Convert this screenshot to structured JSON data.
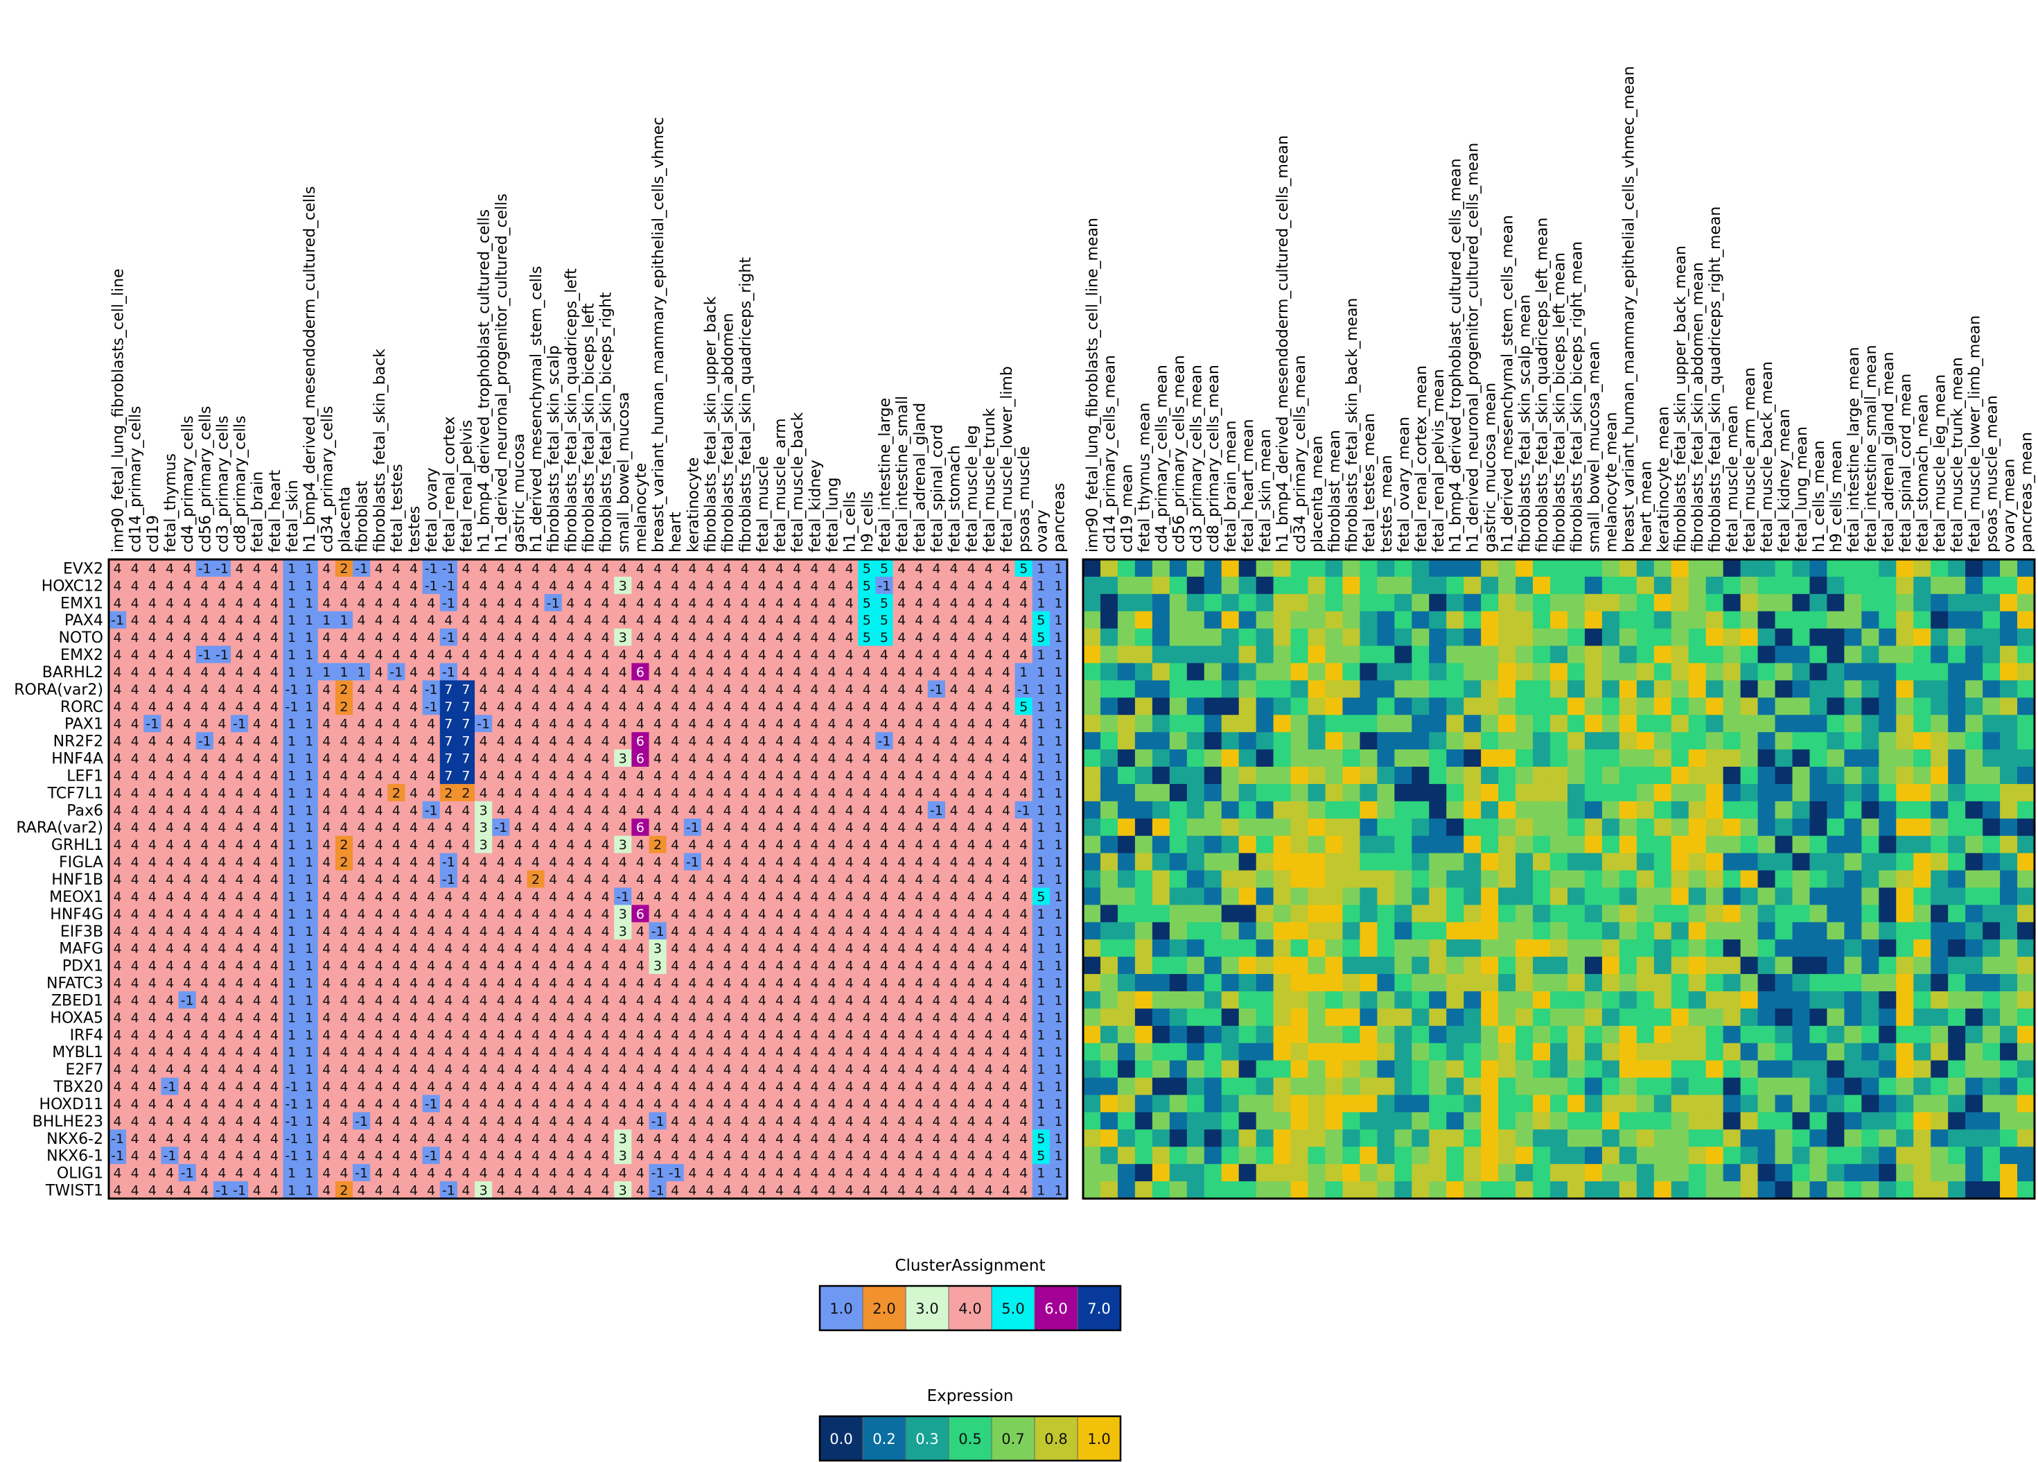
{
  "chart_data": [
    {
      "type": "heatmap",
      "name": "cluster-heatmap",
      "legend_title": "ClusterAssignment",
      "x": [
        "imr90_fetal_lung_fibroblasts_cell_line",
        "cd14_primary_cells",
        "cd19",
        "fetal_thymus",
        "cd4_primary_cells",
        "cd56_primary_cells",
        "cd3_primary_cells",
        "cd8_primary_cells",
        "fetal_brain",
        "fetal_heart",
        "fetal_skin",
        "h1_bmp4_derived_mesendoderm_cultured_cells",
        "cd34_primary_cells",
        "placenta",
        "fibroblast",
        "fibroblasts_fetal_skin_back",
        "fetal_testes",
        "testes",
        "fetal_ovary",
        "fetal_renal_cortex",
        "fetal_renal_pelvis",
        "h1_bmp4_derived_trophoblast_cultured_cells",
        "h1_derived_neuronal_progenitor_cultured_cells",
        "gastric_mucosa",
        "h1_derived_mesenchymal_stem_cells",
        "fibroblasts_fetal_skin_scalp",
        "fibroblasts_fetal_skin_quadriceps_left",
        "fibroblasts_fetal_skin_biceps_left",
        "fibroblasts_fetal_skin_biceps_right",
        "small_bowel_mucosa",
        "melanocyte",
        "breast_variant_human_mammary_epithelial_cells_vhmec",
        "heart",
        "keratinocyte",
        "fibroblasts_fetal_skin_upper_back",
        "fibroblasts_fetal_skin_abdomen",
        "fibroblasts_fetal_skin_quadriceps_right",
        "fetal_muscle",
        "fetal_muscle_arm",
        "fetal_muscle_back",
        "fetal_kidney",
        "fetal_lung",
        "h1_cells",
        "h9_cells",
        "fetal_intestine_large",
        "fetal_intestine_small",
        "fetal_adrenal_gland",
        "fetal_spinal_cord",
        "fetal_stomach",
        "fetal_muscle_leg",
        "fetal_muscle_trunk",
        "fetal_muscle_lower_limb",
        "psoas_muscle",
        "ovary",
        "pancreas"
      ],
      "y": [
        "EVX2",
        "HOXC12",
        "EMX1",
        "PAX4",
        "NOTO",
        "EMX2",
        "BARHL2",
        "RORA(var2)",
        "RORC",
        "PAX1",
        "NR2F2",
        "HNF4A",
        "LEF1",
        "TCF7L1",
        "Pax6",
        "RARA(var2)",
        "GRHL1",
        "FIGLA",
        "HNF1B",
        "MEOX1",
        "HNF4G",
        "EIF3B",
        "MAFG",
        "PDX1",
        "NFATC3",
        "ZBED1",
        "HOXA5",
        "IRF4",
        "MYBL1",
        "E2F7",
        "TBX20",
        "HOXD11",
        "BHLHE23",
        "NKX6-2",
        "NKX6-1",
        "OLIG1",
        "TWIST1"
      ],
      "default_value": 4,
      "column_overrides": {
        "10": 1,
        "11": 1,
        "53": 1,
        "54": 1
      },
      "cell_overrides": [
        [
          0,
          5,
          -1
        ],
        [
          0,
          6,
          -1
        ],
        [
          0,
          13,
          2
        ],
        [
          0,
          14,
          -1
        ],
        [
          0,
          18,
          -1
        ],
        [
          0,
          19,
          -1
        ],
        [
          0,
          43,
          5
        ],
        [
          0,
          44,
          5
        ],
        [
          0,
          52,
          5
        ],
        [
          1,
          18,
          -1
        ],
        [
          1,
          19,
          -1
        ],
        [
          1,
          29,
          3
        ],
        [
          1,
          43,
          5
        ],
        [
          1,
          44,
          -1
        ],
        [
          2,
          19,
          -1
        ],
        [
          2,
          25,
          -1
        ],
        [
          2,
          43,
          5
        ],
        [
          2,
          44,
          5
        ],
        [
          3,
          0,
          -1
        ],
        [
          3,
          12,
          1
        ],
        [
          3,
          13,
          1
        ],
        [
          3,
          43,
          5
        ],
        [
          3,
          44,
          5
        ],
        [
          3,
          53,
          5
        ],
        [
          4,
          19,
          -1
        ],
        [
          4,
          29,
          3
        ],
        [
          4,
          43,
          5
        ],
        [
          4,
          44,
          5
        ],
        [
          4,
          53,
          5
        ],
        [
          5,
          5,
          -1
        ],
        [
          5,
          6,
          -1
        ],
        [
          6,
          12,
          1
        ],
        [
          6,
          13,
          1
        ],
        [
          6,
          14,
          1
        ],
        [
          6,
          16,
          -1
        ],
        [
          6,
          19,
          -1
        ],
        [
          6,
          30,
          6
        ],
        [
          6,
          52,
          1
        ],
        [
          7,
          10,
          -1
        ],
        [
          7,
          12,
          4
        ],
        [
          7,
          13,
          2
        ],
        [
          7,
          18,
          -1
        ],
        [
          7,
          19,
          7
        ],
        [
          7,
          20,
          7
        ],
        [
          7,
          47,
          -1
        ],
        [
          7,
          52,
          -1
        ],
        [
          8,
          10,
          -1
        ],
        [
          8,
          13,
          2
        ],
        [
          8,
          18,
          -1
        ],
        [
          8,
          19,
          7
        ],
        [
          8,
          20,
          7
        ],
        [
          8,
          52,
          5
        ],
        [
          9,
          2,
          -1
        ],
        [
          9,
          7,
          -1
        ],
        [
          9,
          19,
          7
        ],
        [
          9,
          20,
          7
        ],
        [
          9,
          21,
          -1
        ],
        [
          10,
          5,
          -1
        ],
        [
          10,
          19,
          7
        ],
        [
          10,
          20,
          7
        ],
        [
          10,
          30,
          6
        ],
        [
          10,
          44,
          -1
        ],
        [
          11,
          19,
          7
        ],
        [
          11,
          20,
          7
        ],
        [
          11,
          29,
          3
        ],
        [
          11,
          30,
          6
        ],
        [
          12,
          19,
          7
        ],
        [
          12,
          20,
          7
        ],
        [
          13,
          16,
          2
        ],
        [
          13,
          19,
          2
        ],
        [
          13,
          20,
          2
        ],
        [
          14,
          18,
          -1
        ],
        [
          14,
          21,
          3
        ],
        [
          14,
          47,
          -1
        ],
        [
          14,
          52,
          -1
        ],
        [
          15,
          21,
          3
        ],
        [
          15,
          22,
          -1
        ],
        [
          15,
          30,
          6
        ],
        [
          15,
          33,
          -1
        ],
        [
          16,
          13,
          2
        ],
        [
          16,
          21,
          3
        ],
        [
          16,
          29,
          3
        ],
        [
          16,
          31,
          2
        ],
        [
          16,
          32,
          4
        ],
        [
          17,
          13,
          2
        ],
        [
          17,
          19,
          -1
        ],
        [
          17,
          33,
          -1
        ],
        [
          18,
          19,
          -1
        ],
        [
          18,
          24,
          2
        ],
        [
          19,
          29,
          -1
        ],
        [
          19,
          53,
          5
        ],
        [
          20,
          29,
          3
        ],
        [
          20,
          30,
          6
        ],
        [
          21,
          29,
          3
        ],
        [
          21,
          31,
          -1
        ],
        [
          22,
          31,
          3
        ],
        [
          23,
          31,
          3
        ],
        [
          24,
          52,
          4
        ],
        [
          25,
          4,
          -1
        ],
        [
          30,
          3,
          -1
        ],
        [
          30,
          10,
          -1
        ],
        [
          31,
          10,
          -1
        ],
        [
          31,
          18,
          -1
        ],
        [
          32,
          10,
          -1
        ],
        [
          32,
          14,
          -1
        ],
        [
          32,
          31,
          -1
        ],
        [
          33,
          0,
          -1
        ],
        [
          33,
          10,
          -1
        ],
        [
          33,
          29,
          3
        ],
        [
          33,
          53,
          5
        ],
        [
          34,
          0,
          -1
        ],
        [
          34,
          3,
          -1
        ],
        [
          34,
          10,
          -1
        ],
        [
          34,
          18,
          -1
        ],
        [
          34,
          29,
          3
        ],
        [
          34,
          53,
          5
        ],
        [
          35,
          4,
          -1
        ],
        [
          35,
          14,
          -1
        ],
        [
          35,
          31,
          -1
        ],
        [
          35,
          32,
          -1
        ],
        [
          36,
          6,
          -1
        ],
        [
          36,
          7,
          -1
        ],
        [
          36,
          13,
          2
        ],
        [
          36,
          19,
          -1
        ],
        [
          36,
          21,
          3
        ],
        [
          36,
          29,
          3
        ],
        [
          36,
          31,
          -1
        ]
      ],
      "colors": {
        "-1": "#6f98f2",
        "1": "#6f98f2",
        "2": "#f2922e",
        "3": "#d4f7d0",
        "4": "#f7a3a3",
        "5": "#00f2f2",
        "6": "#a30096",
        "7": "#073a9a"
      },
      "text_colors": {
        "-1": "#111111",
        "1": "#111111",
        "2": "#111111",
        "3": "#111111",
        "4": "#111111",
        "5": "#111111",
        "6": "#ffffff",
        "7": "#ffffff"
      },
      "legend": [
        "1.0",
        "2.0",
        "3.0",
        "4.0",
        "5.0",
        "6.0",
        "7.0"
      ]
    },
    {
      "type": "heatmap",
      "name": "expression-heatmap",
      "legend_title": "Expression",
      "x": [
        "imr90_fetal_lung_fibroblasts_cell_line_mean",
        "cd14_primary_cells_mean",
        "cd19_mean",
        "fetal_thymus_mean",
        "cd4_primary_cells_mean",
        "cd56_primary_cells_mean",
        "cd3_primary_cells_mean",
        "cd8_primary_cells_mean",
        "fetal_brain_mean",
        "fetal_heart_mean",
        "fetal_skin_mean",
        "h1_bmp4_derived_mesendoderm_cultured_cells_mean",
        "cd34_primary_cells_mean",
        "placenta_mean",
        "fibroblast_mean",
        "fibroblasts_fetal_skin_back_mean",
        "fetal_testes_mean",
        "testes_mean",
        "fetal_ovary_mean",
        "fetal_renal_cortex_mean",
        "fetal_renal_pelvis_mean",
        "h1_bmp4_derived_trophoblast_cultured_cells_mean",
        "h1_derived_neuronal_progenitor_cultured_cells_mean",
        "gastric_mucosa_mean",
        "h1_derived_mesenchymal_stem_cells_mean",
        "fibroblasts_fetal_skin_scalp_mean",
        "fibroblasts_fetal_skin_quadriceps_left_mean",
        "fibroblasts_fetal_skin_biceps_left_mean",
        "fibroblasts_fetal_skin_biceps_right_mean",
        "small_bowel_mucosa_mean",
        "melanocyte_mean",
        "breast_variant_human_mammary_epithelial_cells_vhmec_mean",
        "heart_mean",
        "keratinocyte_mean",
        "fibroblasts_fetal_skin_upper_back_mean",
        "fibroblasts_fetal_skin_abdomen_mean",
        "fibroblasts_fetal_skin_quadriceps_right_mean",
        "fetal_muscle_mean",
        "fetal_muscle_arm_mean",
        "fetal_muscle_back_mean",
        "fetal_kidney_mean",
        "fetal_lung_mean",
        "h1_cells_mean",
        "h9_cells_mean",
        "fetal_intestine_large_mean",
        "fetal_intestine_small_mean",
        "fetal_adrenal_gland_mean",
        "fetal_spinal_cord_mean",
        "fetal_stomach_mean",
        "fetal_muscle_leg_mean",
        "fetal_muscle_trunk_mean",
        "fetal_muscle_lower_limb_mean",
        "psoas_muscle_mean",
        "ovary_mean",
        "pancreas_mean"
      ],
      "y_shared_with": "cluster-heatmap",
      "value_range": [
        0,
        1
      ],
      "colormap": [
        "#08306b",
        "#0b6ea1",
        "#19a394",
        "#2ed47e",
        "#7dd15a",
        "#c1c72e",
        "#f2c20a"
      ],
      "legend": [
        "0.0",
        "0.2",
        "0.3",
        "0.5",
        "0.7",
        "0.8",
        "1.0"
      ],
      "seed": 20240611,
      "dark_columns": [
        5,
        6,
        7,
        10,
        17,
        18,
        19,
        20,
        39,
        40,
        41,
        42,
        43,
        44,
        45,
        46,
        50,
        51,
        52
      ],
      "light_columns": [
        11,
        12,
        13,
        14,
        23,
        24,
        25,
        26,
        27,
        28,
        30,
        31,
        32,
        33,
        34,
        35,
        36,
        47,
        48
      ]
    }
  ]
}
